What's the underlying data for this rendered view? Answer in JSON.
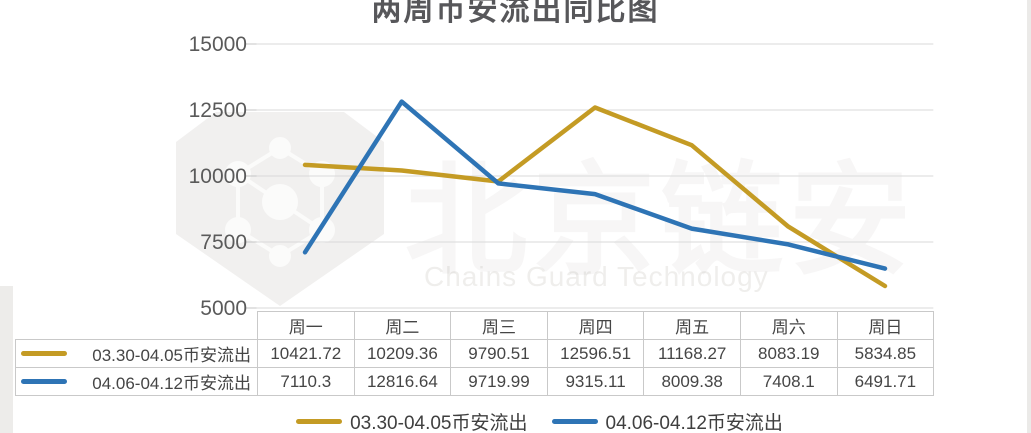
{
  "title": "两周币安流出同比图",
  "watermark": {
    "cn": "北京链安",
    "en": "Chains Guard Technology",
    "logo": "shield-network-logo"
  },
  "chart_data": {
    "type": "line",
    "categories": [
      "周一",
      "周二",
      "周三",
      "周四",
      "周五",
      "周六",
      "周日"
    ],
    "series": [
      {
        "name": "03.30-04.05币安流出",
        "color": "#C49B24",
        "values": [
          10421.72,
          10209.36,
          9790.51,
          12596.51,
          11168.27,
          8083.19,
          5834.85
        ]
      },
      {
        "name": "04.06-04.12币安流出",
        "color": "#2E74B5",
        "values": [
          7110.3,
          12816.64,
          9719.99,
          9315.11,
          8009.38,
          7408.1,
          6491.71
        ]
      }
    ],
    "ylim": [
      5000,
      15000
    ],
    "yticks": [
      15000,
      12500,
      10000,
      7500,
      5000
    ],
    "grid": true,
    "legend_position": "bottom",
    "table_shown": true
  },
  "colors": {
    "gridline": "#d9d9d9",
    "tick": "#c4c4c4",
    "axis_label": "#5a5a5a",
    "table_border": "#c9c9c9",
    "text": "#454545"
  }
}
